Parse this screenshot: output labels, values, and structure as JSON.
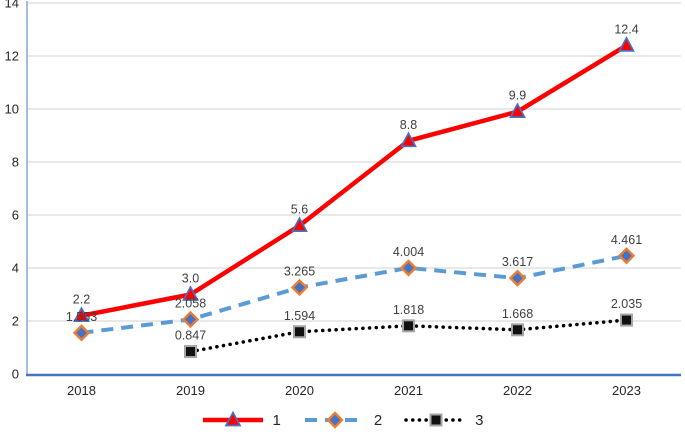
{
  "chart_data": {
    "type": "line",
    "title": "",
    "xlabel": "",
    "ylabel": "",
    "categories": [
      "2018",
      "2019",
      "2020",
      "2021",
      "2022",
      "2023"
    ],
    "series": [
      {
        "name": "1",
        "values": [
          2.2,
          3.0,
          5.6,
          8.8,
          9.9,
          12.4
        ],
        "data_labels": [
          "2.2",
          "3.0",
          "5.6",
          "8.8",
          "9.9",
          "12.4"
        ],
        "line_color": "#FF0000",
        "line_style": "solid",
        "line_width": 4.5,
        "marker": "triangle",
        "marker_fill": "#FF0000",
        "marker_stroke": "#4472C4"
      },
      {
        "name": "2",
        "values": [
          1.553,
          2.058,
          3.265,
          4.004,
          3.617,
          4.461
        ],
        "data_labels": [
          "1.553",
          "2.058",
          "3.265",
          "4.004",
          "3.617",
          "4.461"
        ],
        "line_color": "#5B9BD5",
        "line_style": "dashed",
        "line_width": 4,
        "marker": "diamond",
        "marker_fill": "#4472C4",
        "marker_stroke": "#ED7D31"
      },
      {
        "name": "3",
        "values": [
          null,
          0.847,
          1.594,
          1.818,
          1.668,
          2.035
        ],
        "data_labels": [
          "",
          "0.847",
          "1.594",
          "1.818",
          "1.668",
          "2.035"
        ],
        "line_color": "#000000",
        "line_style": "dotted",
        "line_width": 3.5,
        "marker": "square",
        "marker_fill": "#111111",
        "marker_stroke": "#A6A6A6"
      }
    ],
    "ylim": [
      0,
      14
    ],
    "yticks": [
      "0",
      "2",
      "4",
      "6",
      "8",
      "10",
      "12",
      "14"
    ],
    "grid": true,
    "legend_position": "bottom",
    "colors": {
      "gridline": "#D9D9D9",
      "x_axis_line": "#4472C4",
      "y_axis_line": "#8EAADB",
      "tick_label": "#262626",
      "data_label": "#404040"
    }
  }
}
